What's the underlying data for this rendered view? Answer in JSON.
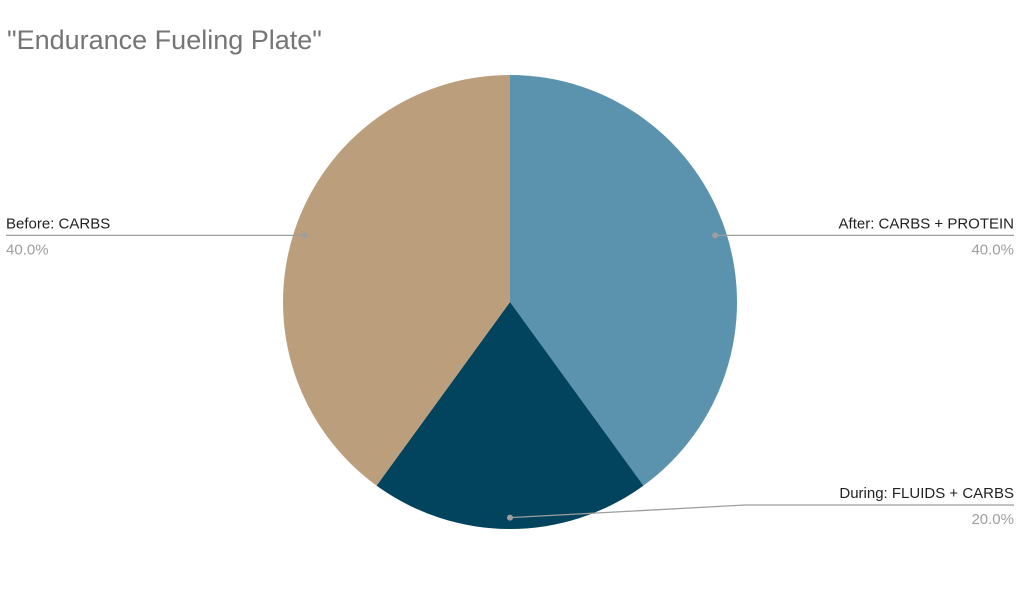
{
  "chart_data": {
    "type": "pie",
    "title": "\"Endurance Fueling Plate\"",
    "categories": [
      "After: CARBS + PROTEIN",
      "During: FLUIDS + CARBS",
      "Before: CARBS"
    ],
    "values": [
      40,
      20,
      40
    ],
    "value_labels": [
      "40.0%",
      "20.0%",
      "40.0%"
    ],
    "colors": [
      "#5b92ae",
      "#02445e",
      "#bb9e7c"
    ]
  }
}
